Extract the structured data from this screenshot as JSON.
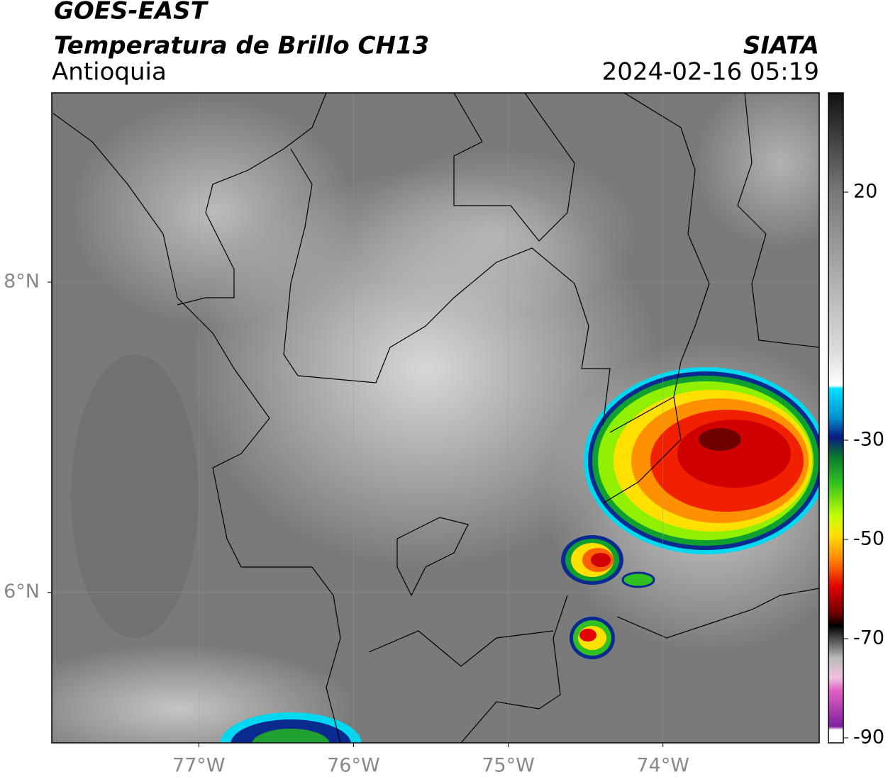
{
  "header": {
    "title": "GOES-EAST",
    "subtitle": "Temperatura de Brillo CH13",
    "region": "Antioquia",
    "org": "SIATA",
    "datetime": "2024-02-16 05:19"
  },
  "map": {
    "xlim": [
      -77.95,
      -72.99
    ],
    "ylim": [
      5.03,
      9.22
    ],
    "xticks": [
      {
        "value": -77,
        "label": "77°W"
      },
      {
        "value": -76,
        "label": "76°W"
      },
      {
        "value": -75,
        "label": "75°W"
      },
      {
        "value": -74,
        "label": "74°W"
      }
    ],
    "yticks": [
      {
        "value": 8,
        "label": "8°N"
      },
      {
        "value": 6,
        "label": "6°N"
      }
    ],
    "grid": true
  },
  "colorbar": {
    "lim": [
      -91,
      40
    ],
    "ticks": [
      20,
      -30,
      -50,
      -70,
      -90
    ]
  }
}
